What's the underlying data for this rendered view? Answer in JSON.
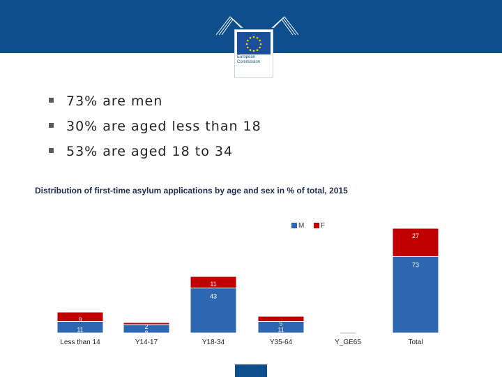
{
  "header": {
    "logo_line1": "European",
    "logo_line2": "Commission",
    "colors": {
      "bar": "#0f4e8c"
    }
  },
  "bullets": [
    "73% are men",
    "30% are aged less than 18",
    "53% are aged 18 to 34"
  ],
  "chart_data": {
    "type": "bar",
    "stacked": true,
    "title": "Distribution of first-time asylum applications by age and sex in % of total, 2015",
    "categories": [
      "Less than 14",
      "Y14-17",
      "Y18-34",
      "Y35-64",
      "Y_GE65",
      "Total"
    ],
    "series": [
      {
        "name": "M",
        "values": [
          11,
          8,
          43,
          11,
          null,
          73
        ],
        "labels": [
          "11",
          "8",
          "43",
          "11",
          "",
          "73"
        ],
        "color": "#2e67b1"
      },
      {
        "name": "F",
        "values": [
          9,
          2,
          11,
          5,
          null,
          27
        ],
        "labels": [
          "9",
          "2",
          "11",
          "5",
          "",
          "27"
        ],
        "color": "#c00000"
      }
    ],
    "legend": [
      "M",
      "F"
    ],
    "legend_position": "top-right"
  }
}
